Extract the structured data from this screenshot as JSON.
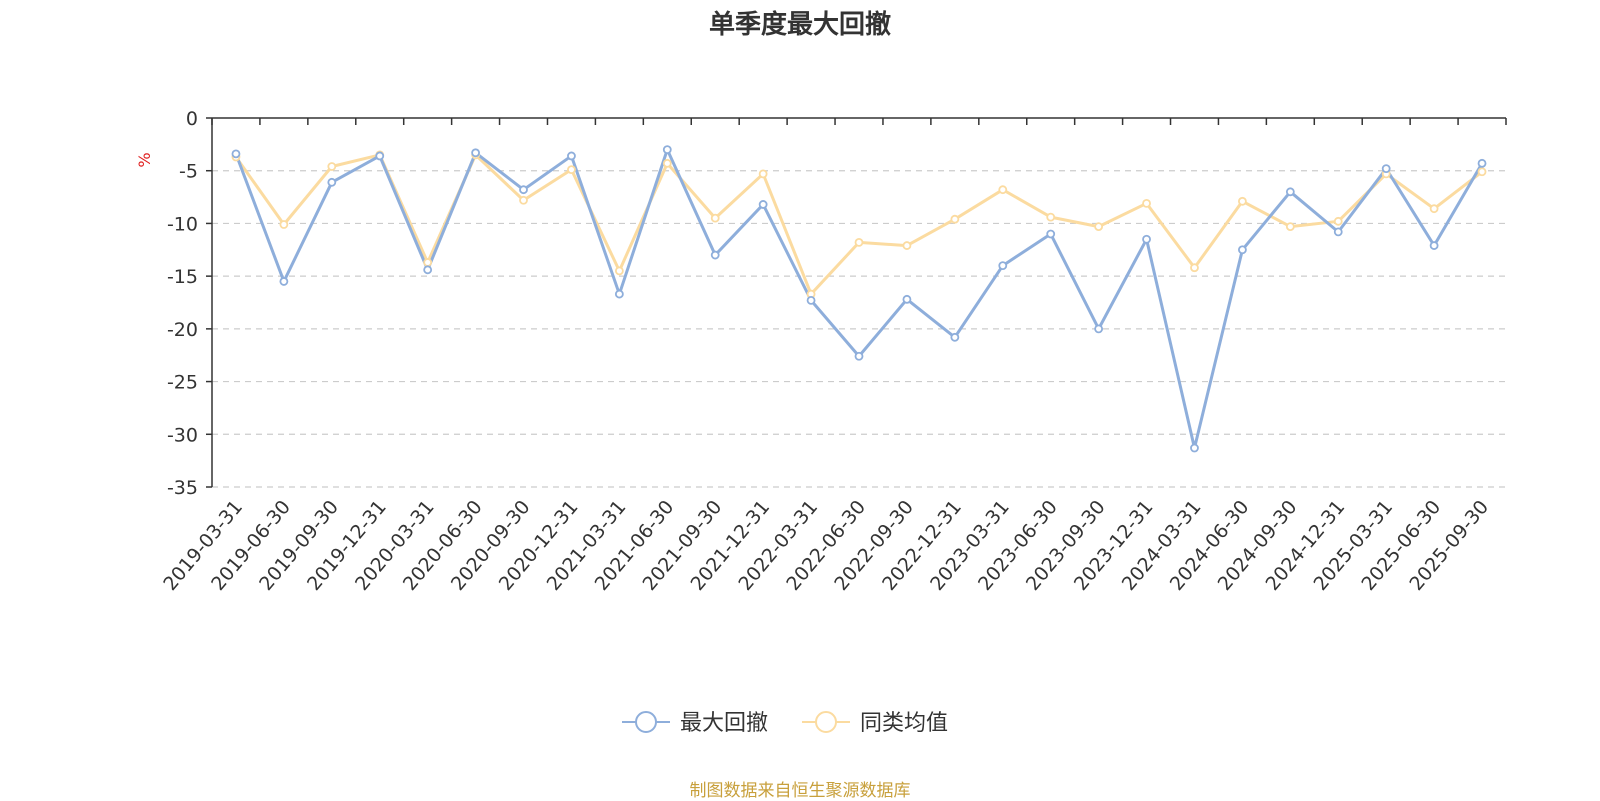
{
  "chart_data": {
    "type": "line",
    "title": "单季度最大回撤",
    "unit_label": "%",
    "ylim": [
      -35,
      0
    ],
    "yticks": [
      0,
      -5,
      -10,
      -15,
      -20,
      -25,
      -30,
      -35
    ],
    "grid": "dashed-horizontal",
    "legend_position": "bottom-center",
    "categories": [
      "2019-03-31",
      "2019-06-30",
      "2019-09-30",
      "2019-12-31",
      "2020-03-31",
      "2020-06-30",
      "2020-09-30",
      "2020-12-31",
      "2021-03-31",
      "2021-06-30",
      "2021-09-30",
      "2021-12-31",
      "2022-03-31",
      "2022-06-30",
      "2022-09-30",
      "2022-12-31",
      "2023-03-31",
      "2023-06-30",
      "2023-09-30",
      "2023-12-31",
      "2024-03-31",
      "2024-06-30",
      "2024-09-30",
      "2024-12-31",
      "2025-03-31",
      "2025-06-30",
      "2025-09-30"
    ],
    "series": [
      {
        "name": "最大回撤",
        "color": "#8eaedb",
        "values": [
          -3.4,
          -15.5,
          -6.1,
          -3.6,
          -14.4,
          -3.3,
          -6.8,
          -3.6,
          -16.7,
          -3.0,
          -13.0,
          -8.2,
          -17.3,
          -22.6,
          -17.2,
          -20.8,
          -14.0,
          -11.0,
          -20.0,
          -11.5,
          -31.3,
          -12.5,
          -7.0,
          -10.8,
          -4.8,
          -12.1,
          -4.3
        ]
      },
      {
        "name": "同类均值",
        "color": "#fbdba0",
        "values": [
          -3.7,
          -10.1,
          -4.6,
          -3.5,
          -13.7,
          -3.5,
          -7.8,
          -4.9,
          -14.5,
          -4.3,
          -9.5,
          -5.3,
          -16.7,
          -11.8,
          -12.1,
          -9.6,
          -6.8,
          -9.4,
          -10.3,
          -8.1,
          -14.2,
          -7.9,
          -10.3,
          -9.8,
          -5.3,
          -8.6,
          -5.1
        ]
      }
    ],
    "source_note": "制图数据来自恒生聚源数据库",
    "source_color": "#c8a03c",
    "unit_color": "#e02020"
  }
}
